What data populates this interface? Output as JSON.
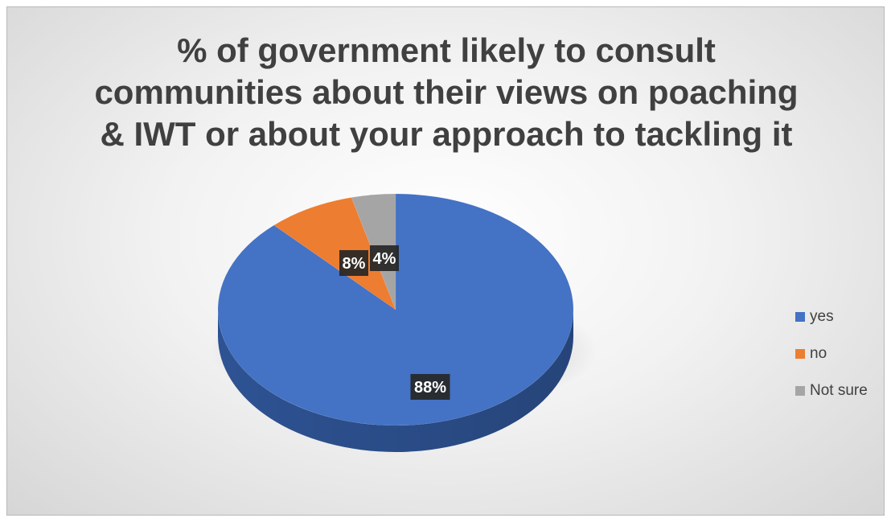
{
  "chart_data": {
    "type": "pie",
    "title_lines": [
      "% of government likely to consult",
      "communities about their views on poaching",
      "& IWT or about your approach to tackling it"
    ],
    "categories": [
      "yes",
      "no",
      "Not sure"
    ],
    "values": [
      88,
      8,
      4
    ],
    "data_labels": [
      "88%",
      "8%",
      "4%"
    ],
    "colors": [
      "#4472C4",
      "#ED7D31",
      "#A5A5A5"
    ],
    "side_colors": [
      "#2F5597",
      "#B45E1F",
      "#7F7F7F"
    ],
    "legend_position": "right",
    "style": "3d-pie"
  }
}
